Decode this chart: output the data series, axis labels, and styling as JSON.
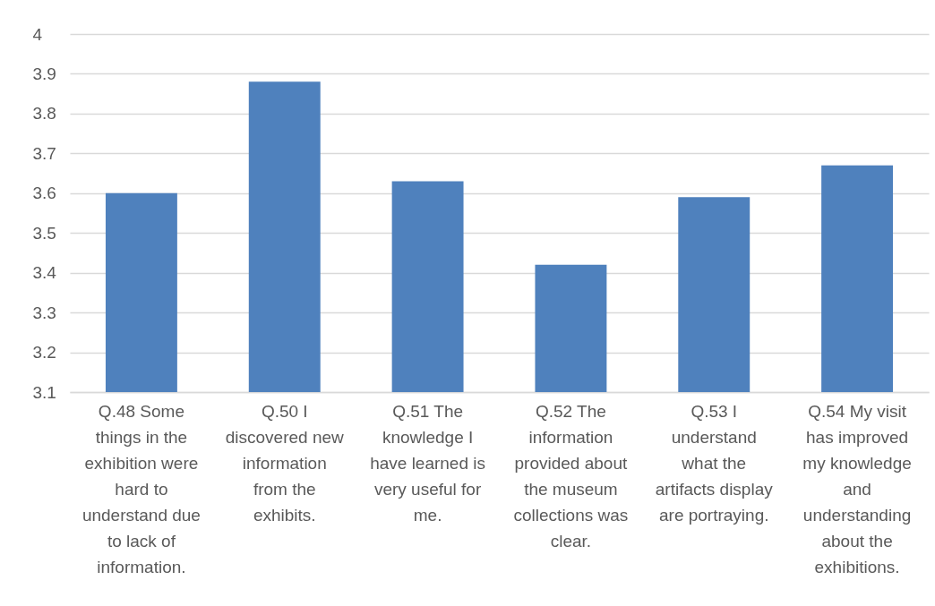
{
  "chart_data": {
    "type": "bar",
    "categories": [
      "Q.48 Some things in the exhibition were hard to understand due to lack of information.",
      "Q.50 I discovered new information from the exhibits.",
      "Q.51 The knowledge I have learned is very useful for me.",
      "Q.52 The information provided about the museum collections was clear.",
      "Q.53 I understand what the artifacts display are portraying.",
      "Q.54 My visit has improved my knowledge and understanding about the exhibitions."
    ],
    "values": [
      3.6,
      3.88,
      3.63,
      3.42,
      3.59,
      3.67
    ],
    "color": "#4f81bd",
    "ylim": [
      3.1,
      4
    ],
    "yticks": [
      3.1,
      3.2,
      3.3,
      3.4,
      3.5,
      3.6,
      3.7,
      3.8,
      3.9,
      4
    ],
    "grid": "y"
  }
}
